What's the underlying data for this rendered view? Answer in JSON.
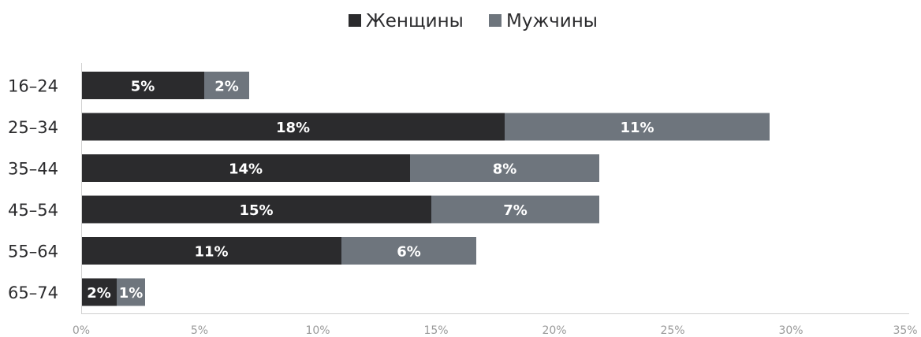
{
  "chart_data": {
    "type": "bar",
    "orientation": "horizontal",
    "stacked": true,
    "categories": [
      "16–24",
      "25–34",
      "35–44",
      "45–54",
      "55–64",
      "65–74"
    ],
    "series": [
      {
        "name": "Женщины",
        "color": "#2b2b2d",
        "values": [
          5.2,
          17.9,
          13.9,
          14.8,
          11.0,
          1.5
        ],
        "labels": [
          "5%",
          "18%",
          "14%",
          "15%",
          "11%",
          "2%"
        ]
      },
      {
        "name": "Мужчины",
        "color": "#6e757d",
        "values": [
          1.9,
          11.2,
          8.0,
          7.1,
          5.7,
          1.2
        ],
        "labels": [
          "2%",
          "11%",
          "8%",
          "7%",
          "6%",
          "1%"
        ]
      }
    ],
    "xlim": [
      0,
      35
    ],
    "xticks": [
      0,
      5,
      10,
      15,
      20,
      25,
      30,
      35
    ],
    "xtick_labels": [
      "0%",
      "5%",
      "10%",
      "15%",
      "20%",
      "25%",
      "30%",
      "35%"
    ],
    "legend_position": "top-center",
    "grid": false
  }
}
